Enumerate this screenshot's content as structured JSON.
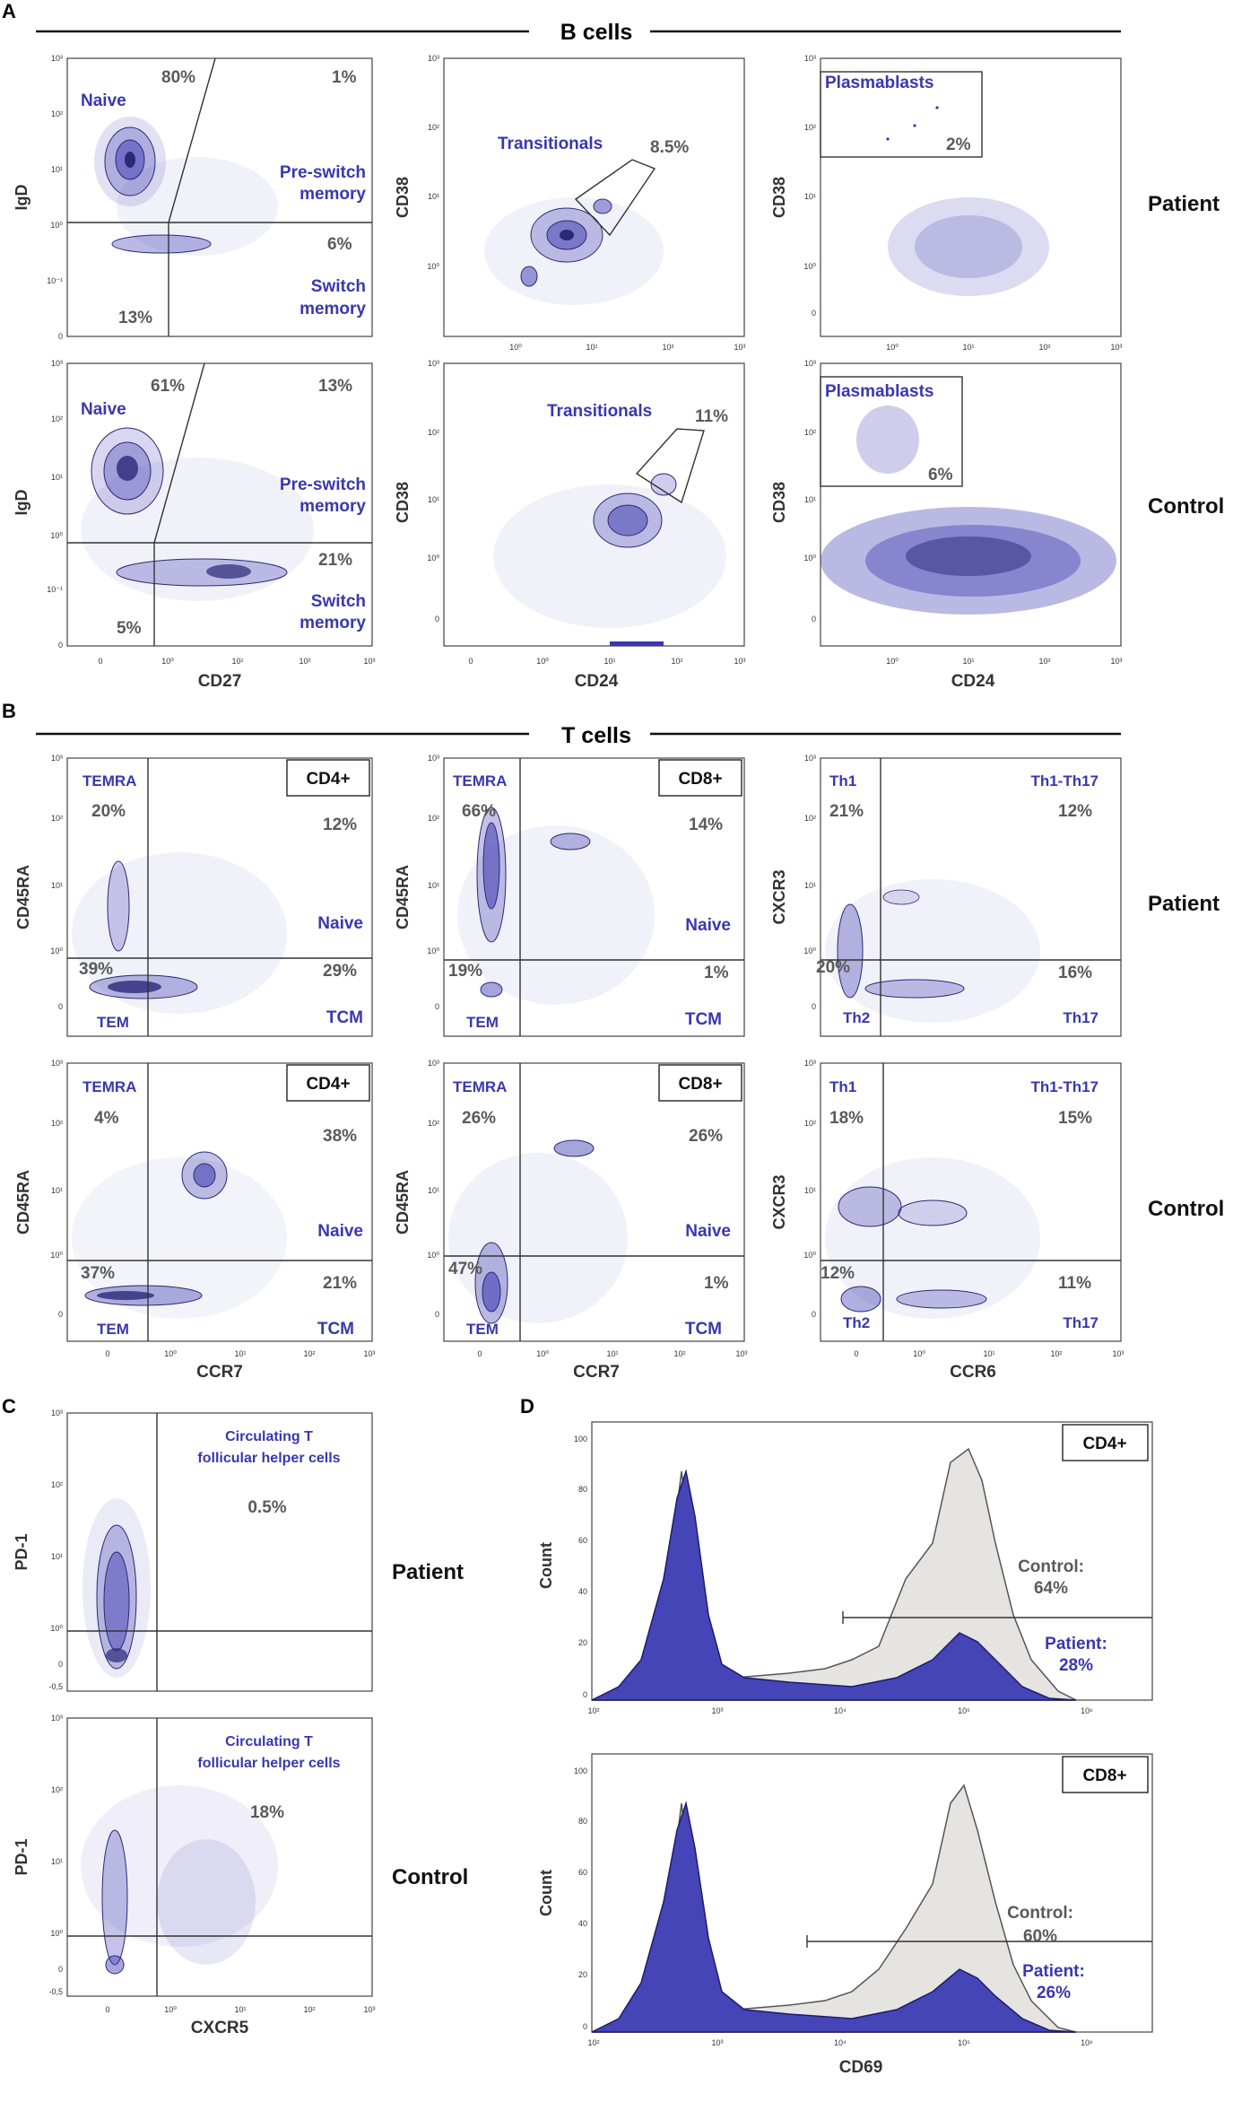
{
  "sections": {
    "A": {
      "letter": "A",
      "header": "B cells"
    },
    "B": {
      "letter": "B",
      "header": "T cells"
    },
    "C": {
      "letter": "C"
    },
    "D": {
      "letter": "D"
    }
  },
  "row_labels": {
    "patient": "Patient",
    "control": "Control"
  },
  "ticks": {
    "y_b": [
      "10³",
      "10²",
      "10¹",
      "10⁰",
      "10⁻¹",
      "0"
    ],
    "y_cd38": [
      "10³",
      "10²",
      "10¹",
      "10⁰",
      "0"
    ],
    "y_t": [
      "10³",
      "10²",
      "10¹",
      "10⁰",
      "0"
    ],
    "y_c": [
      "10³",
      "10²",
      "10¹",
      "10⁰",
      "0",
      "-0,5"
    ],
    "x_flow": [
      "0",
      "10⁰",
      "10¹",
      "10²",
      "10³"
    ],
    "x_cd24": [
      "0",
      "10⁰",
      "10¹",
      "10²",
      "10³"
    ],
    "x_cd24_pb": [
      "10⁰",
      "10¹",
      "10²",
      "10³"
    ],
    "y_count": [
      "100",
      "80",
      "60",
      "40",
      "20",
      "0"
    ],
    "x_cd69": [
      "10²",
      "10³",
      "10⁴",
      "10⁵",
      "10⁶"
    ]
  },
  "panelA": {
    "row1": {
      "p1": {
        "ylabel": "IgD",
        "naive": "Naive",
        "pct_tl": "80%",
        "pct_tr": "1%",
        "pre1": "Pre-switch",
        "pre2": "memory",
        "pct_br": "6%",
        "sw1": "Switch",
        "sw2": "memory",
        "pct_bl": "13%"
      },
      "p2": {
        "ylabel": "CD38",
        "gate": "Transitionals",
        "pct": "8.5%"
      },
      "p3": {
        "ylabel": "CD38",
        "gate": "Plasmablasts",
        "pct": "2%"
      }
    },
    "row2": {
      "p1": {
        "ylabel": "IgD",
        "xlabel": "CD27",
        "naive": "Naive",
        "pct_tl": "61%",
        "pct_tr": "13%",
        "pre1": "Pre-switch",
        "pre2": "memory",
        "pct_br": "21%",
        "sw1": "Switch",
        "sw2": "memory",
        "pct_bl": "5%"
      },
      "p2": {
        "ylabel": "CD38",
        "xlabel": "CD24",
        "gate": "Transitionals",
        "pct": "11%"
      },
      "p3": {
        "ylabel": "CD38",
        "xlabel": "CD24",
        "gate": "Plasmablasts",
        "pct": "6%"
      }
    }
  },
  "panelB": {
    "row1": {
      "p1": {
        "ylabel": "CD45RA",
        "box": "CD4+",
        "tl_name": "TEMRA",
        "tl_pct": "20%",
        "tr_pct": "12%",
        "naive": "Naive",
        "bl_pct": "39%",
        "br_pct": "29%",
        "tem": "TEM",
        "tcm": "TCM"
      },
      "p2": {
        "ylabel": "CD45RA",
        "box": "CD8+",
        "tl_name": "TEMRA",
        "tl_pct": "66%",
        "tr_pct": "14%",
        "naive": "Naive",
        "bl_pct": "19%",
        "br_pct": "1%",
        "tem": "TEM",
        "tcm": "TCM"
      },
      "p3": {
        "ylabel": "CXCR3",
        "tl_name": "Th1",
        "tr_name": "Th1-Th17",
        "tl_pct": "21%",
        "tr_pct": "12%",
        "bl_pct": "20%",
        "br_pct": "16%",
        "bl_name": "Th2",
        "br_name": "Th17"
      }
    },
    "row2": {
      "p1": {
        "ylabel": "CD45RA",
        "xlabel": "CCR7",
        "box": "CD4+",
        "tl_name": "TEMRA",
        "tl_pct": "4%",
        "tr_pct": "38%",
        "naive": "Naive",
        "bl_pct": "37%",
        "br_pct": "21%",
        "tem": "TEM",
        "tcm": "TCM"
      },
      "p2": {
        "ylabel": "CD45RA",
        "xlabel": "CCR7",
        "box": "CD8+",
        "tl_name": "TEMRA",
        "tl_pct": "26%",
        "tr_pct": "26%",
        "naive": "Naive",
        "bl_pct": "47%",
        "br_pct": "1%",
        "tem": "TEM",
        "tcm": "TCM"
      },
      "p3": {
        "ylabel": "CXCR3",
        "xlabel": "CCR6",
        "tl_name": "Th1",
        "tr_name": "Th1-Th17",
        "tl_pct": "18%",
        "tr_pct": "15%",
        "bl_pct": "12%",
        "br_pct": "11%",
        "bl_name": "Th2",
        "br_name": "Th17"
      }
    }
  },
  "panelC": {
    "patient": {
      "ylabel": "PD-1",
      "gate1": "Circulating T",
      "gate2": "follicular helper cells",
      "pct": "0.5%"
    },
    "control": {
      "ylabel": "PD-1",
      "xlabel": "CXCR5",
      "gate1": "Circulating T",
      "gate2": "follicular helper cells",
      "pct": "18%"
    }
  },
  "panelD": {
    "top": {
      "ylabel": "Count",
      "box": "CD4+",
      "control_label": "Control:",
      "control_pct": "64%",
      "patient_label": "Patient:",
      "patient_pct": "28%"
    },
    "bottom": {
      "ylabel": "Count",
      "xlabel": "CD69",
      "box": "CD8+",
      "control_label": "Control:",
      "control_pct": "60%",
      "patient_label": "Patient:",
      "patient_pct": "26%"
    }
  },
  "colors": {
    "events": "#3a37b0",
    "contour": "#2b2878",
    "histo_patient": "#4545b8",
    "histo_control": "#e6e4e0"
  }
}
